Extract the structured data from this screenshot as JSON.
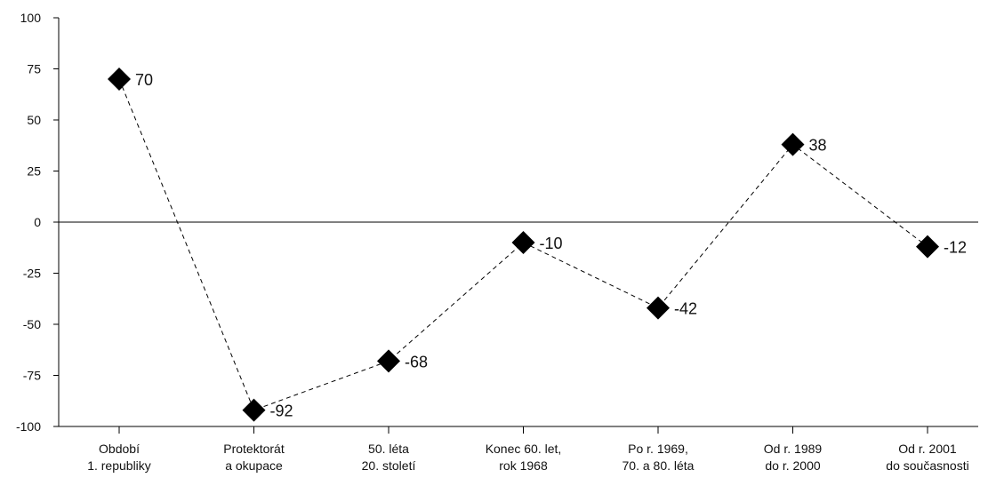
{
  "chart_data": {
    "type": "line",
    "title": "",
    "xlabel": "",
    "ylabel": "",
    "ylim": [
      -100,
      100
    ],
    "yticks": [
      100,
      75,
      50,
      25,
      0,
      -25,
      -50,
      -75,
      -100
    ],
    "grid": false,
    "line_style": "dashed",
    "marker": "diamond",
    "categories": [
      [
        "Období",
        "1. republiky"
      ],
      [
        "Protektorát",
        "a okupace"
      ],
      [
        "50. léta",
        "20. století"
      ],
      [
        "Konec 60. let,",
        "rok 1968"
      ],
      [
        "Po r. 1969,",
        "70. a 80. léta"
      ],
      [
        "Od r. 1989",
        "do r. 2000"
      ],
      [
        "Od r. 2001",
        "do současnosti"
      ]
    ],
    "values": [
      70,
      -92,
      -68,
      -10,
      -42,
      38,
      -12
    ],
    "data_labels": [
      "70",
      "-92",
      "-68",
      "-10",
      "-42",
      "38",
      "-12"
    ]
  }
}
